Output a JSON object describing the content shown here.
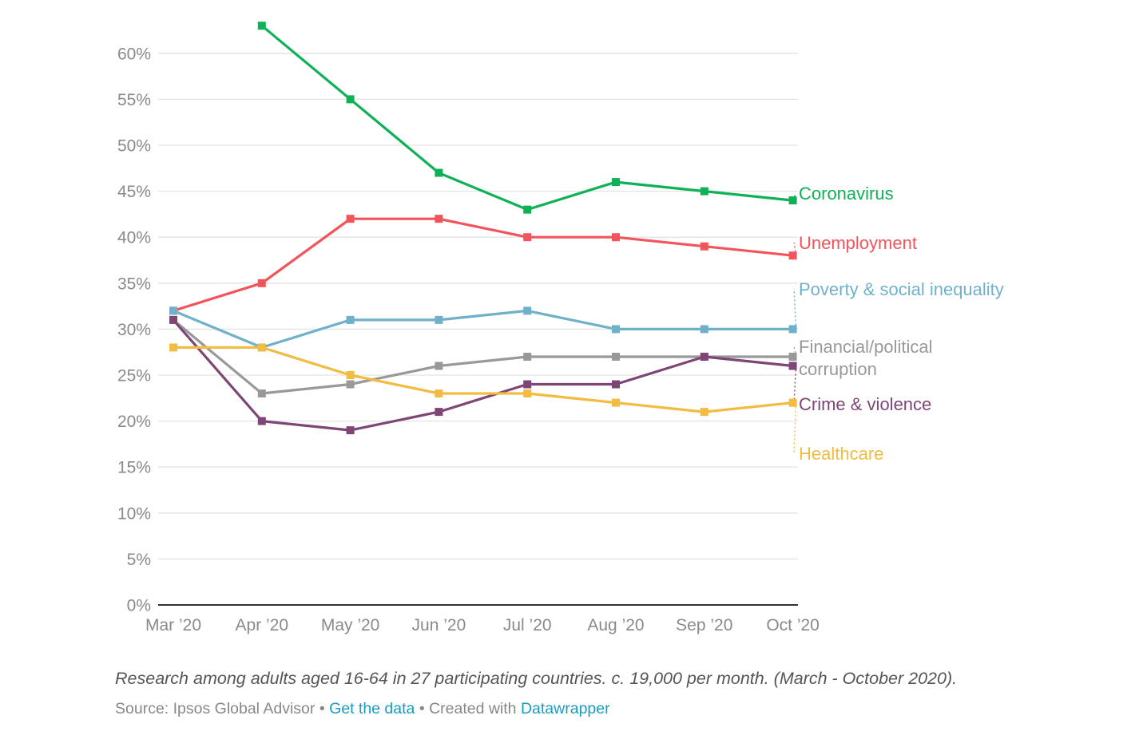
{
  "chart_data": {
    "type": "line",
    "categories": [
      "Mar ’20",
      "Apr ’20",
      "May ’20",
      "Jun ’20",
      "Jul ’20",
      "Aug ’20",
      "Sep ’20",
      "Oct ’20"
    ],
    "ylim": [
      0,
      65
    ],
    "yticks": [
      0,
      5,
      10,
      15,
      20,
      25,
      30,
      35,
      40,
      45,
      50,
      55,
      60
    ],
    "ytick_labels": [
      "0%",
      "5%",
      "10%",
      "15%",
      "20%",
      "25%",
      "30%",
      "35%",
      "40%",
      "45%",
      "50%",
      "55%",
      "60%"
    ],
    "grid": true,
    "legend": "direct labels at right",
    "series": [
      {
        "name": "Coronavirus",
        "color": "#0eb155",
        "values": [
          null,
          63,
          55,
          47,
          43,
          46,
          45,
          44
        ]
      },
      {
        "name": "Unemployment",
        "color": "#f2545b",
        "values": [
          32,
          35,
          42,
          42,
          40,
          40,
          39,
          38
        ]
      },
      {
        "name": "Poverty & social inequality",
        "color": "#6fb1c8",
        "values": [
          32,
          28,
          31,
          31,
          32,
          30,
          30,
          30
        ]
      },
      {
        "name": "Financial/political corruption",
        "color": "#999999",
        "values": [
          31,
          23,
          24,
          26,
          27,
          27,
          27,
          27
        ]
      },
      {
        "name": "Crime & violence",
        "color": "#7d4676",
        "values": [
          31,
          20,
          19,
          21,
          24,
          24,
          27,
          26
        ]
      },
      {
        "name": "Healthcare",
        "color": "#f1bc41",
        "values": [
          28,
          28,
          25,
          23,
          23,
          22,
          21,
          22
        ]
      }
    ],
    "series_labels": [
      {
        "lines": [
          "Coronavirus"
        ],
        "color": "#0eb155"
      },
      {
        "lines": [
          "Unemployment"
        ],
        "color": "#f2545b"
      },
      {
        "lines": [
          "Poverty & social inequality"
        ],
        "color": "#6fb1c8"
      },
      {
        "lines": [
          "Financial/political",
          "corruption"
        ],
        "color": "#999999"
      },
      {
        "lines": [
          "Crime & violence"
        ],
        "color": "#7d4676"
      },
      {
        "lines": [
          "Healthcare"
        ],
        "color": "#f1bc41"
      }
    ]
  },
  "notes": "Research among adults aged 16-64 in 27 participating countries. c. 19,000 per month. (March - October 2020).",
  "footer": {
    "source": "Source: Ipsos Global Advisor",
    "separator": "•",
    "get_data_link": "Get the data",
    "created_with": "Created with",
    "datawrapper_link": "Datawrapper",
    "link_color": "#1a9bc2"
  }
}
